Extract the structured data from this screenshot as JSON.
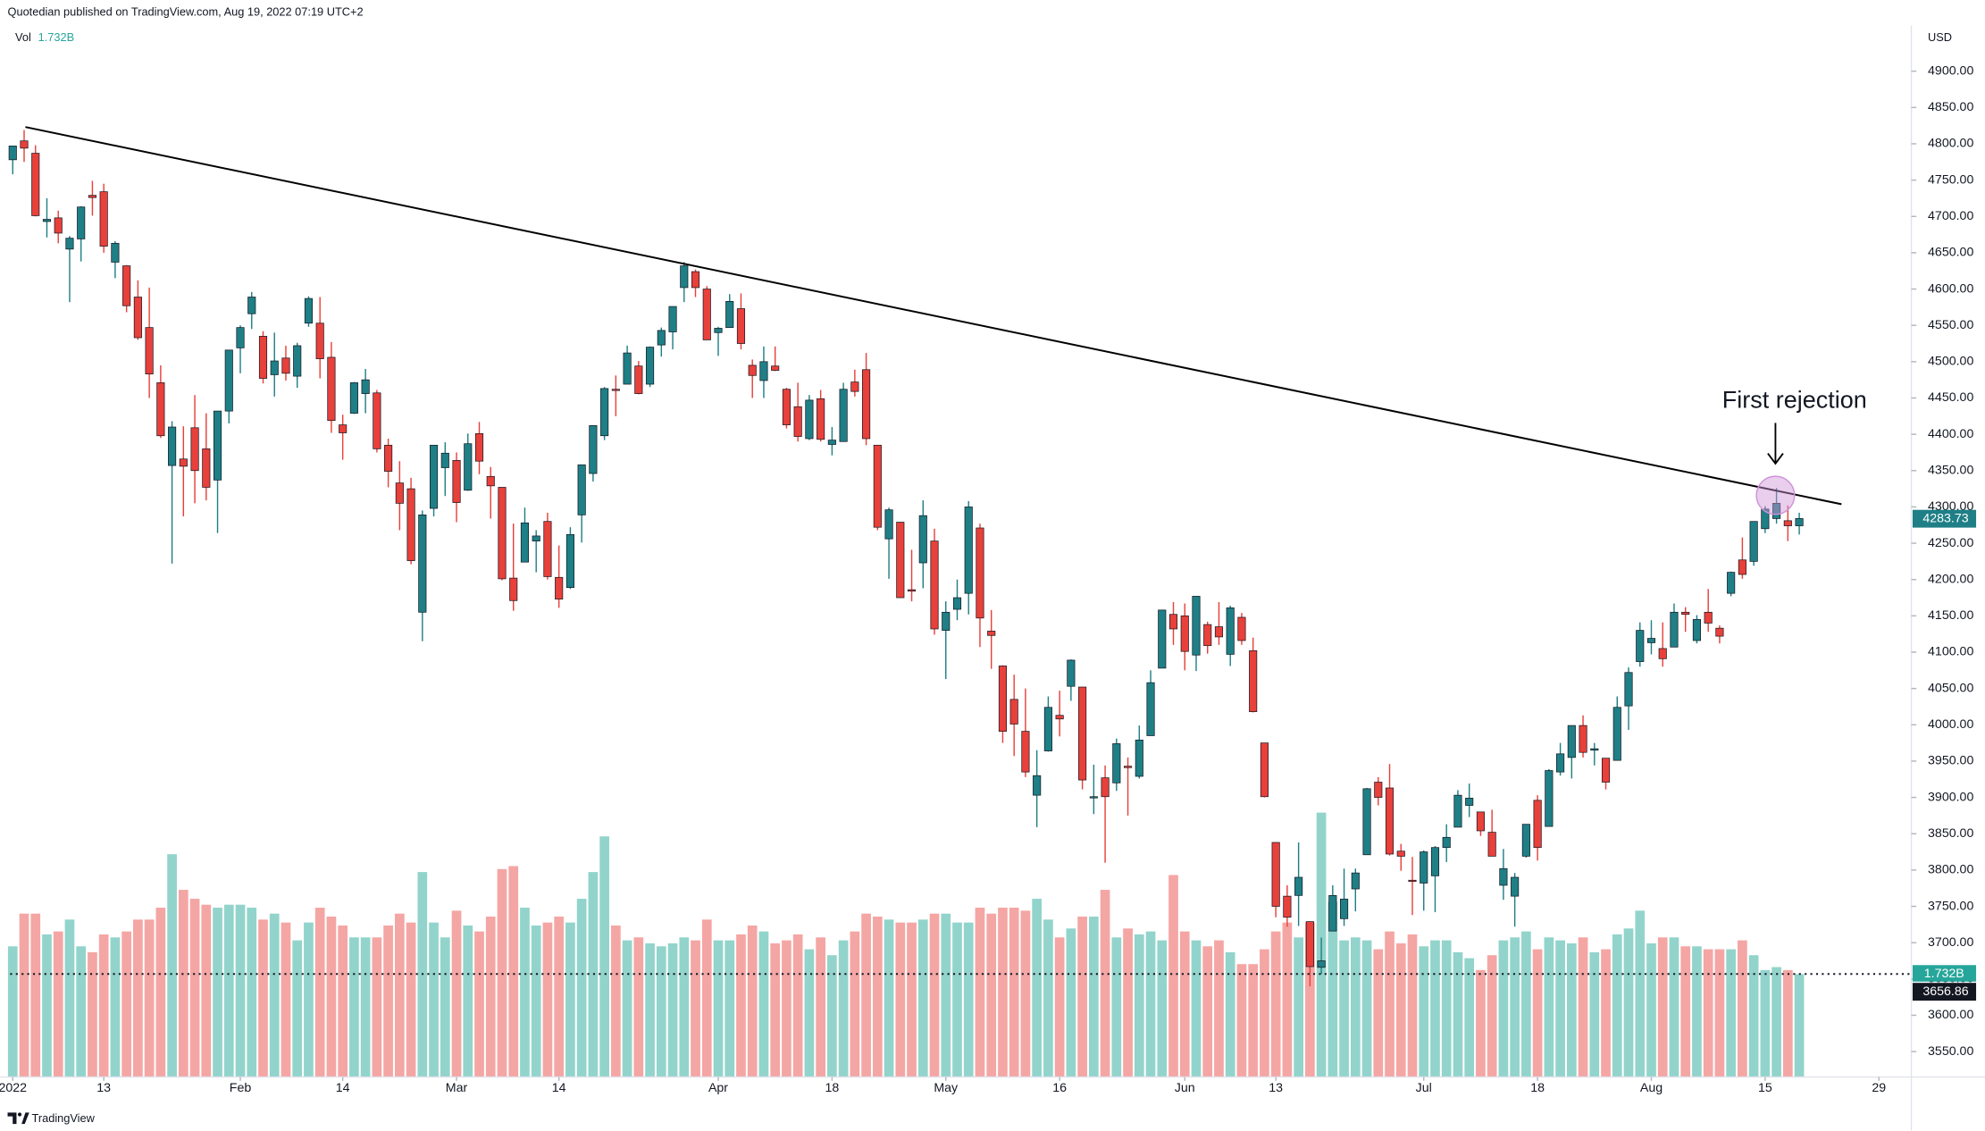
{
  "chart_data": {
    "type": "candlestick",
    "header": "Quotedian published on TradingView.com, Aug 19, 2022 07:19 UTC+2",
    "volume_title": "Vol",
    "volume_last_label": "1.732B",
    "currency": "USD",
    "annotation": "First rejection",
    "footer": "TradingView",
    "last_price": 4283.73,
    "volume_line_price": 3656.86,
    "up_color": "#1f7f86",
    "down_color": "#e8403a",
    "volume_up_color": "#92d4cb",
    "volume_down_color": "#f4a6a4",
    "grid": false,
    "xlim": [
      -1.12,
      166.85
    ],
    "ylim": [
      3515,
      4963
    ],
    "volume_lim": [
      0,
      17.7
    ],
    "xticks": [
      {
        "value": 0,
        "label": "2022"
      },
      {
        "value": 8,
        "label": "13"
      },
      {
        "value": 20,
        "label": "Feb"
      },
      {
        "value": 29,
        "label": "14"
      },
      {
        "value": 39,
        "label": "Mar"
      },
      {
        "value": 48,
        "label": "14"
      },
      {
        "value": 62,
        "label": "Apr"
      },
      {
        "value": 72,
        "label": "18"
      },
      {
        "value": 82,
        "label": "May"
      },
      {
        "value": 92,
        "label": "16"
      },
      {
        "value": 103,
        "label": "Jun"
      },
      {
        "value": 111,
        "label": "13"
      },
      {
        "value": 124,
        "label": "Jul"
      },
      {
        "value": 134,
        "label": "18"
      },
      {
        "value": 144,
        "label": "Aug"
      },
      {
        "value": 154,
        "label": "15"
      },
      {
        "value": 164,
        "label": "29"
      }
    ],
    "yticks": [
      {
        "value": 3550,
        "label": "3550.00"
      },
      {
        "value": 3600,
        "label": "3600.00"
      },
      {
        "value": 3650,
        "label": "3650.00"
      },
      {
        "value": 3700,
        "label": "3700.00"
      },
      {
        "value": 3750,
        "label": "3750.00"
      },
      {
        "value": 3800,
        "label": "3800.00"
      },
      {
        "value": 3850,
        "label": "3850.00"
      },
      {
        "value": 3900,
        "label": "3900.00"
      },
      {
        "value": 3950,
        "label": "3950.00"
      },
      {
        "value": 4000,
        "label": "4000.00"
      },
      {
        "value": 4050,
        "label": "4050.00"
      },
      {
        "value": 4100,
        "label": "4100.00"
      },
      {
        "value": 4150,
        "label": "4150.00"
      },
      {
        "value": 4200,
        "label": "4200.00"
      },
      {
        "value": 4250,
        "label": "4250.00"
      },
      {
        "value": 4300,
        "label": "4300.00"
      },
      {
        "value": 4350,
        "label": "4350.00"
      },
      {
        "value": 4400,
        "label": "4400.00"
      },
      {
        "value": 4450,
        "label": "4450.00"
      },
      {
        "value": 4500,
        "label": "4500.00"
      },
      {
        "value": 4550,
        "label": "4550.00"
      },
      {
        "value": 4600,
        "label": "4600.00"
      },
      {
        "value": 4650,
        "label": "4650.00"
      },
      {
        "value": 4700,
        "label": "4700.00"
      },
      {
        "value": 4750,
        "label": "4750.00"
      },
      {
        "value": 4800,
        "label": "4800.00"
      },
      {
        "value": 4850,
        "label": "4850.00"
      },
      {
        "value": 4900,
        "label": "4900.00"
      }
    ],
    "ohlc": [
      [
        4778,
        4797,
        4758,
        4797
      ],
      [
        4804,
        4819,
        4775,
        4794
      ],
      [
        4787,
        4798,
        4700,
        4701
      ],
      [
        4693,
        4725,
        4671,
        4696
      ],
      [
        4698,
        4708,
        4663,
        4677
      ],
      [
        4655,
        4673,
        4582,
        4670
      ],
      [
        4669,
        4714,
        4638,
        4713
      ],
      [
        4729,
        4749,
        4701,
        4726
      ],
      [
        4734,
        4745,
        4650,
        4659
      ],
      [
        4637,
        4666,
        4615,
        4663
      ],
      [
        4632,
        4633,
        4568,
        4577
      ],
      [
        4589,
        4612,
        4530,
        4533
      ],
      [
        4547,
        4602,
        4450,
        4483
      ],
      [
        4471,
        4495,
        4395,
        4398
      ],
      [
        4357,
        4418,
        4222,
        4410
      ],
      [
        4366,
        4411,
        4287,
        4356
      ],
      [
        4409,
        4454,
        4305,
        4350
      ],
      [
        4380,
        4429,
        4309,
        4327
      ],
      [
        4337,
        4432,
        4264,
        4432
      ],
      [
        4432,
        4516,
        4415,
        4516
      ],
      [
        4519,
        4550,
        4484,
        4547
      ],
      [
        4566,
        4596,
        4545,
        4589
      ],
      [
        4535,
        4542,
        4470,
        4477
      ],
      [
        4482,
        4540,
        4452,
        4501
      ],
      [
        4505,
        4522,
        4474,
        4484
      ],
      [
        4480,
        4526,
        4464,
        4522
      ],
      [
        4553,
        4590,
        4548,
        4587
      ],
      [
        4553,
        4589,
        4477,
        4504
      ],
      [
        4506,
        4527,
        4402,
        4419
      ],
      [
        4413,
        4427,
        4365,
        4402
      ],
      [
        4429,
        4472,
        4428,
        4471
      ],
      [
        4456,
        4490,
        4429,
        4475
      ],
      [
        4457,
        4461,
        4375,
        4380
      ],
      [
        4385,
        4394,
        4327,
        4349
      ],
      [
        4333,
        4363,
        4268,
        4305
      ],
      [
        4325,
        4340,
        4221,
        4226
      ],
      [
        4155,
        4295,
        4115,
        4289
      ],
      [
        4298,
        4385,
        4287,
        4385
      ],
      [
        4354,
        4389,
        4315,
        4374
      ],
      [
        4364,
        4375,
        4279,
        4306
      ],
      [
        4323,
        4401,
        4322,
        4387
      ],
      [
        4401,
        4417,
        4345,
        4363
      ],
      [
        4342,
        4355,
        4284,
        4329
      ],
      [
        4327,
        4327,
        4199,
        4201
      ],
      [
        4202,
        4277,
        4157,
        4171
      ],
      [
        4224,
        4299,
        4224,
        4278
      ],
      [
        4253,
        4268,
        4210,
        4260
      ],
      [
        4280,
        4292,
        4200,
        4204
      ],
      [
        4203,
        4247,
        4161,
        4173
      ],
      [
        4189,
        4272,
        4187,
        4262
      ],
      [
        4289,
        4358,
        4251,
        4358
      ],
      [
        4346,
        4412,
        4335,
        4412
      ],
      [
        4398,
        4465,
        4392,
        4463
      ],
      [
        4462,
        4481,
        4425,
        4461
      ],
      [
        4469,
        4522,
        4469,
        4512
      ],
      [
        4494,
        4501,
        4455,
        4456
      ],
      [
        4469,
        4521,
        4465,
        4520
      ],
      [
        4523,
        4547,
        4507,
        4543
      ],
      [
        4541,
        4576,
        4517,
        4576
      ],
      [
        4602,
        4637,
        4582,
        4632
      ],
      [
        4624,
        4627,
        4589,
        4602
      ],
      [
        4600,
        4604,
        4530,
        4530
      ],
      [
        4540,
        4548,
        4508,
        4546
      ],
      [
        4547,
        4593,
        4547,
        4583
      ],
      [
        4573,
        4594,
        4517,
        4525
      ],
      [
        4495,
        4503,
        4450,
        4481
      ],
      [
        4474,
        4521,
        4450,
        4500
      ],
      [
        4494,
        4521,
        4487,
        4488
      ],
      [
        4462,
        4464,
        4408,
        4413
      ],
      [
        4438,
        4471,
        4390,
        4397
      ],
      [
        4394,
        4454,
        4392,
        4447
      ],
      [
        4449,
        4461,
        4390,
        4393
      ],
      [
        4386,
        4410,
        4371,
        4392
      ],
      [
        4390,
        4471,
        4390,
        4462
      ],
      [
        4472,
        4489,
        4452,
        4459
      ],
      [
        4489,
        4512,
        4385,
        4394
      ],
      [
        4385,
        4385,
        4268,
        4272
      ],
      [
        4256,
        4299,
        4201,
        4296
      ],
      [
        4279,
        4279,
        4175,
        4175
      ],
      [
        4186,
        4241,
        4170,
        4184
      ],
      [
        4223,
        4309,
        4188,
        4288
      ],
      [
        4253,
        4270,
        4124,
        4132
      ],
      [
        4130,
        4170,
        4063,
        4155
      ],
      [
        4159,
        4200,
        4144,
        4175
      ],
      [
        4181,
        4308,
        4152,
        4300
      ],
      [
        4271,
        4277,
        4107,
        4147
      ],
      [
        4129,
        4158,
        4077,
        4123
      ],
      [
        4081,
        4082,
        3975,
        3991
      ],
      [
        4035,
        4069,
        3957,
        4001
      ],
      [
        3991,
        4050,
        3928,
        3935
      ],
      [
        3903,
        3965,
        3859,
        3930
      ],
      [
        3964,
        4039,
        3963,
        4024
      ],
      [
        4013,
        4047,
        3984,
        4008
      ],
      [
        4053,
        4090,
        4033,
        4089
      ],
      [
        4052,
        4052,
        3911,
        3924
      ],
      [
        3900,
        3945,
        3877,
        3901
      ],
      [
        3927,
        3944,
        3810,
        3901
      ],
      [
        3920,
        3981,
        3909,
        3974
      ],
      [
        3943,
        3955,
        3875,
        3941
      ],
      [
        3929,
        3999,
        3926,
        3979
      ],
      [
        3985,
        4075,
        3985,
        4058
      ],
      [
        4078,
        4158,
        4078,
        4158
      ],
      [
        4152,
        4169,
        4110,
        4132
      ],
      [
        4150,
        4167,
        4075,
        4101
      ],
      [
        4096,
        4177,
        4074,
        4177
      ],
      [
        4138,
        4142,
        4098,
        4109
      ],
      [
        4135,
        4169,
        4110,
        4121
      ],
      [
        4097,
        4164,
        4081,
        4161
      ],
      [
        4148,
        4154,
        4110,
        4116
      ],
      [
        4102,
        4120,
        4017,
        4018
      ],
      [
        3975,
        3975,
        3900,
        3901
      ],
      [
        3838,
        3838,
        3735,
        3750
      ],
      [
        3764,
        3779,
        3722,
        3735
      ],
      [
        3765,
        3838,
        3723,
        3790
      ],
      [
        3729,
        3729,
        3640,
        3667
      ],
      [
        3666,
        3707,
        3657,
        3675
      ],
      [
        3716,
        3779,
        3716,
        3765
      ],
      [
        3733,
        3802,
        3723,
        3760
      ],
      [
        3774,
        3802,
        3743,
        3796
      ],
      [
        3821,
        3913,
        3821,
        3912
      ],
      [
        3921,
        3928,
        3889,
        3900
      ],
      [
        3913,
        3946,
        3820,
        3822
      ],
      [
        3826,
        3836,
        3799,
        3819
      ],
      [
        3786,
        3818,
        3738,
        3785
      ],
      [
        3782,
        3827,
        3744,
        3825
      ],
      [
        3792,
        3833,
        3742,
        3831
      ],
      [
        3831,
        3863,
        3811,
        3845
      ],
      [
        3859,
        3910,
        3859,
        3903
      ],
      [
        3889,
        3919,
        3873,
        3899
      ],
      [
        3880,
        3880,
        3847,
        3854
      ],
      [
        3852,
        3883,
        3819,
        3819
      ],
      [
        3779,
        3829,
        3759,
        3802
      ],
      [
        3764,
        3796,
        3722,
        3790
      ],
      [
        3819,
        3863,
        3817,
        3863
      ],
      [
        3896,
        3903,
        3813,
        3831
      ],
      [
        3860,
        3939,
        3860,
        3937
      ],
      [
        3935,
        3975,
        3930,
        3960
      ],
      [
        3955,
        3999,
        3926,
        3999
      ],
      [
        3999,
        4013,
        3955,
        3962
      ],
      [
        3965,
        3975,
        3944,
        3967
      ],
      [
        3954,
        3954,
        3911,
        3921
      ],
      [
        3951,
        4039,
        3951,
        4024
      ],
      [
        4026,
        4079,
        3993,
        4072
      ],
      [
        4087,
        4141,
        4080,
        4130
      ],
      [
        4113,
        4144,
        4097,
        4119
      ],
      [
        4105,
        4141,
        4080,
        4091
      ],
      [
        4107,
        4167,
        4107,
        4155
      ],
      [
        4155,
        4162,
        4128,
        4152
      ],
      [
        4116,
        4151,
        4112,
        4145
      ],
      [
        4155,
        4187,
        4128,
        4140
      ],
      [
        4133,
        4137,
        4112,
        4122
      ],
      [
        4181,
        4211,
        4177,
        4210
      ],
      [
        4227,
        4258,
        4201,
        4207
      ],
      [
        4225,
        4280,
        4219,
        4280
      ],
      [
        4270,
        4301,
        4264,
        4297
      ],
      [
        4284,
        4326,
        4277,
        4305
      ],
      [
        4281,
        4302,
        4253,
        4274
      ],
      [
        4274,
        4292,
        4262,
        4284
      ]
    ],
    "volume": [
      2.2,
      2.75,
      2.75,
      2.4,
      2.45,
      2.65,
      2.2,
      2.1,
      2.4,
      2.35,
      2.45,
      2.65,
      2.65,
      2.85,
      3.75,
      3.15,
      3.0,
      2.9,
      2.85,
      2.9,
      2.9,
      2.85,
      2.65,
      2.75,
      2.6,
      2.3,
      2.6,
      2.85,
      2.7,
      2.55,
      2.35,
      2.35,
      2.35,
      2.55,
      2.75,
      2.6,
      3.45,
      2.6,
      2.35,
      2.8,
      2.55,
      2.45,
      2.7,
      3.5,
      3.55,
      2.85,
      2.55,
      2.6,
      2.7,
      2.6,
      3.0,
      3.45,
      4.05,
      2.55,
      2.3,
      2.35,
      2.25,
      2.2,
      2.25,
      2.35,
      2.3,
      2.65,
      2.3,
      2.3,
      2.4,
      2.55,
      2.45,
      2.25,
      2.3,
      2.4,
      2.15,
      2.35,
      2.05,
      2.3,
      2.45,
      2.75,
      2.7,
      2.65,
      2.6,
      2.6,
      2.65,
      2.75,
      2.75,
      2.6,
      2.6,
      2.85,
      2.75,
      2.85,
      2.85,
      2.8,
      3.0,
      2.65,
      2.35,
      2.5,
      2.7,
      2.7,
      3.15,
      2.35,
      2.5,
      2.4,
      2.45,
      2.3,
      3.4,
      2.45,
      2.3,
      2.2,
      2.3,
      2.1,
      1.9,
      1.9,
      2.15,
      2.45,
      2.6,
      2.35,
      2.6,
      4.45,
      2.95,
      2.3,
      2.35,
      2.3,
      2.15,
      2.45,
      2.25,
      2.4,
      2.2,
      2.3,
      2.3,
      2.1,
      2.0,
      1.8,
      2.05,
      2.3,
      2.35,
      2.45,
      2.15,
      2.35,
      2.3,
      2.25,
      2.35,
      2.1,
      2.15,
      2.4,
      2.5,
      2.8,
      2.25,
      2.35,
      2.35,
      2.2,
      2.2,
      2.15,
      2.15,
      2.15,
      2.3,
      2.05,
      1.8,
      1.85,
      1.8,
      1.732
    ]
  }
}
